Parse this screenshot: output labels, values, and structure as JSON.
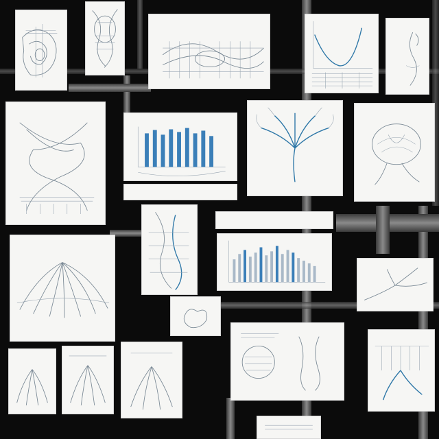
{
  "captions": {
    "c1": "",
    "c2": "",
    "c3": "",
    "c4": "",
    "c5": "",
    "c6": "",
    "c7": "",
    "c8": "",
    "c9": "",
    "c10": "",
    "c11": "",
    "c12": "",
    "c13": "",
    "c14": "",
    "c15": ""
  },
  "colors": {
    "background": "#0b0b0b",
    "sheet": "#f6f6f4",
    "accent": "#3b7fb8"
  }
}
